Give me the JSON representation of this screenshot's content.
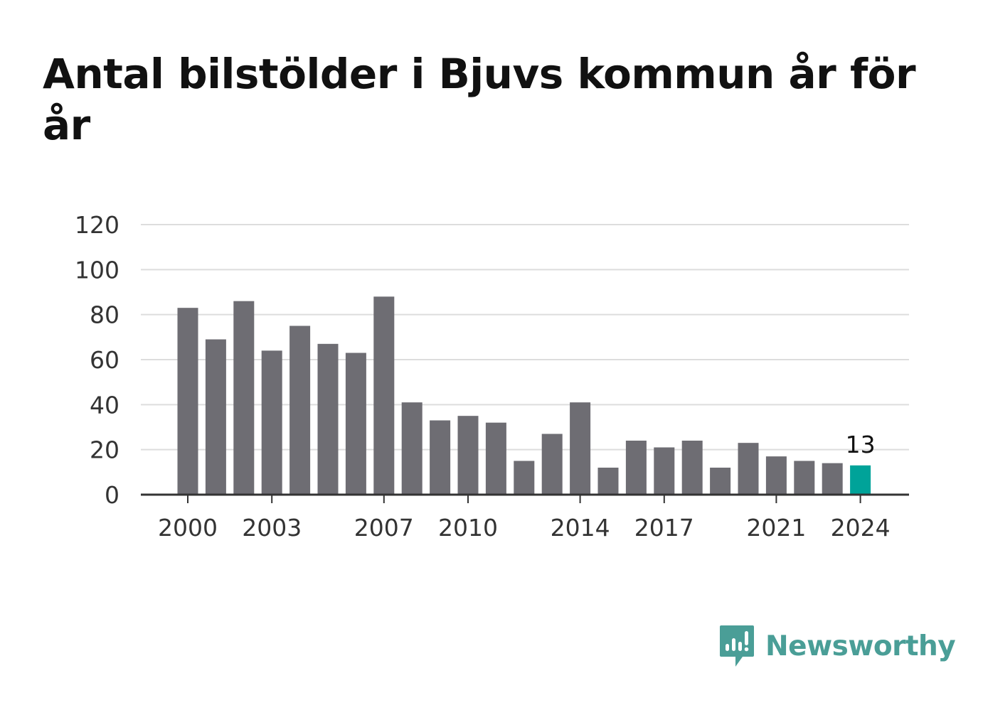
{
  "title": "Antal bilstölder i Bjuvs kommun år för år",
  "brand": {
    "name": "Newsworthy",
    "color": "#4a9e97",
    "icon": "newsworthy-logo-icon"
  },
  "chart_data": {
    "type": "bar",
    "title": "Antal bilstölder i Bjuvs kommun år för år",
    "xlabel": "",
    "ylabel": "",
    "categories": [
      "2000",
      "2001",
      "2002",
      "2003",
      "2004",
      "2005",
      "2006",
      "2007",
      "2008",
      "2009",
      "2010",
      "2011",
      "2012",
      "2013",
      "2014",
      "2015",
      "2016",
      "2017",
      "2018",
      "2019",
      "2020",
      "2021",
      "2022",
      "2023",
      "2024"
    ],
    "values": [
      83,
      69,
      86,
      64,
      75,
      67,
      63,
      88,
      41,
      33,
      35,
      32,
      15,
      27,
      41,
      12,
      24,
      21,
      24,
      12,
      23,
      17,
      15,
      14,
      13
    ],
    "ylim": [
      0,
      120
    ],
    "yticks": [
      "0",
      "20",
      "40",
      "60",
      "80",
      "100",
      "120"
    ],
    "ytick_values": [
      0,
      20,
      40,
      60,
      80,
      100,
      120
    ],
    "xtick_labels": [
      "2000",
      "2003",
      "2007",
      "2010",
      "2014",
      "2017",
      "2021",
      "2024"
    ],
    "highlight": {
      "category": "2024",
      "label": "13"
    },
    "grid": true,
    "colors": {
      "bar": "#6e6d73",
      "highlight": "#00a399",
      "grid": "#dddddd",
      "axis": "#333333"
    }
  }
}
